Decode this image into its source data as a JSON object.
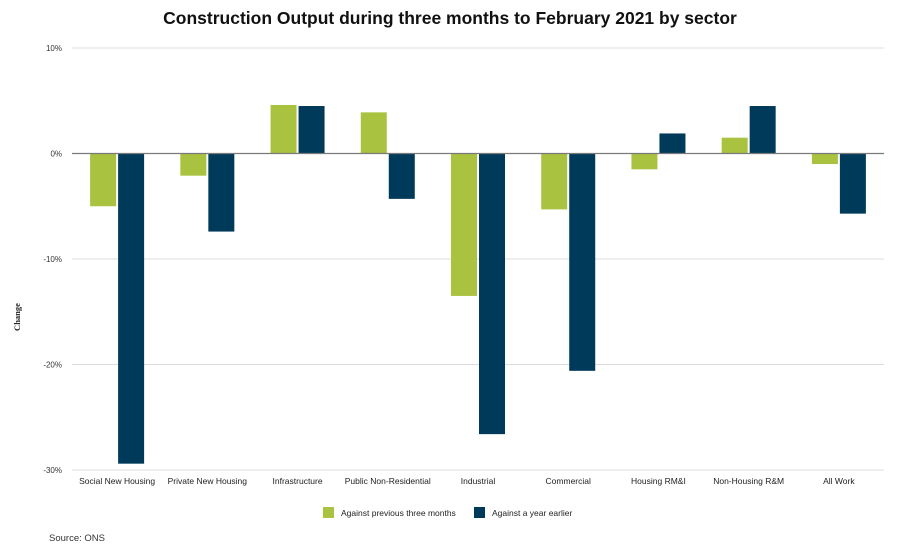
{
  "chart_data": {
    "type": "bar",
    "title": "Construction Output during three months to February 2021 by sector",
    "ylabel": "Change",
    "ylim": [
      -30,
      10
    ],
    "yticks": [
      10,
      0,
      -10,
      -20,
      -30
    ],
    "ytick_labels": [
      "10%",
      "0%",
      "-10%",
      "-20%",
      "-30%"
    ],
    "grid": true,
    "legend_position": "bottom-center",
    "categories": [
      "Social New Housing",
      "Private New Housing",
      "Infrastructure",
      "Public Non-Residential",
      "Industrial",
      "Commercial",
      "Housing RM&I",
      "Non-Housing R&M",
      "All Work"
    ],
    "series": [
      {
        "name": "Against previous three months",
        "color": "#a9c23f",
        "values": [
          -5.0,
          -2.1,
          4.6,
          3.9,
          -13.5,
          -5.3,
          -1.5,
          1.5,
          -1.0
        ]
      },
      {
        "name": "Against a year earlier",
        "color": "#003a5a",
        "values": [
          -29.4,
          -7.4,
          4.5,
          -4.3,
          -26.6,
          -20.6,
          1.9,
          4.5,
          -5.7
        ]
      }
    ]
  },
  "source": "Source: ONS"
}
